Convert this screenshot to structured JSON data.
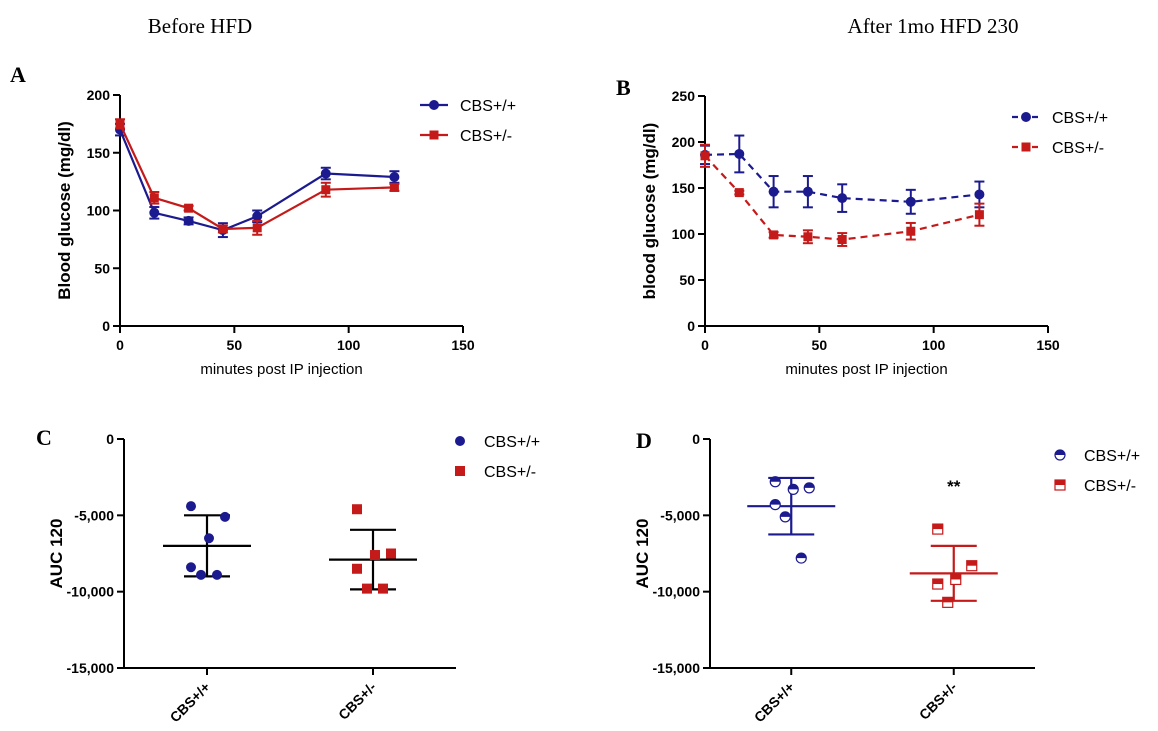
{
  "headings": {
    "left": "Before HFD",
    "right": "After 1mo HFD 230"
  },
  "colors": {
    "wt": "#1b1a8e",
    "het": "#c41a1a",
    "axis": "#000000"
  },
  "chart_data": [
    {
      "panel": "A",
      "type": "line",
      "xlabel": "minutes post IP injection",
      "ylabel": "Blood glucose (mg/dl)",
      "xlim": [
        0,
        150
      ],
      "ylim": [
        0,
        200
      ],
      "xticks": [
        "0",
        "50",
        "100",
        "150"
      ],
      "yticks": [
        "0",
        "50",
        "100",
        "150",
        "200"
      ],
      "legend_position": "top-right",
      "series": [
        {
          "name": "CBS+/+",
          "color": "#1b1a8e",
          "marker": "circle",
          "line": "solid",
          "x": [
            0,
            15,
            30,
            45,
            60,
            90,
            120
          ],
          "y": [
            170,
            98,
            91,
            83,
            95,
            132,
            129
          ],
          "err": [
            5,
            5,
            3,
            6,
            5,
            5,
            5
          ]
        },
        {
          "name": "CBS+/-",
          "color": "#c41a1a",
          "marker": "square",
          "line": "solid",
          "x": [
            0,
            15,
            30,
            45,
            60,
            90,
            120
          ],
          "y": [
            175,
            111,
            102,
            84,
            85,
            118,
            120
          ],
          "err": [
            4,
            5,
            2,
            3,
            6,
            6,
            3
          ]
        }
      ]
    },
    {
      "panel": "B",
      "type": "line",
      "xlabel": "minutes post IP injection",
      "ylabel": "blood glucose (mg/dl)",
      "xlim": [
        0,
        150
      ],
      "ylim": [
        0,
        250
      ],
      "xticks": [
        "0",
        "50",
        "100",
        "150"
      ],
      "yticks": [
        "0",
        "50",
        "100",
        "150",
        "200",
        "250"
      ],
      "legend_position": "top-right",
      "series": [
        {
          "name": "CBS+/+",
          "color": "#1b1a8e",
          "marker": "circle",
          "line": "dashed",
          "x": [
            0,
            15,
            30,
            45,
            60,
            90,
            120
          ],
          "y": [
            186,
            187,
            146,
            146,
            139,
            135,
            143
          ],
          "err": [
            10,
            20,
            17,
            17,
            15,
            13,
            14
          ]
        },
        {
          "name": "CBS+/-",
          "color": "#c41a1a",
          "marker": "square",
          "line": "dashed",
          "x": [
            0,
            15,
            30,
            45,
            60,
            90,
            120
          ],
          "y": [
            185,
            145,
            99,
            97,
            94,
            103,
            121
          ],
          "err": [
            12,
            2,
            3,
            7,
            7,
            9,
            12
          ]
        }
      ]
    },
    {
      "panel": "C",
      "type": "scatter",
      "ylabel": "AUC 120",
      "ylim": [
        -15000,
        0
      ],
      "yticks": [
        "0",
        "-5,000",
        "-10,000",
        "-15,000"
      ],
      "categories": [
        "CBS+/+",
        "CBS+/-"
      ],
      "legend_position": "top-right",
      "series": [
        {
          "name": "CBS+/+",
          "color": "#1b1a8e",
          "marker": "circle",
          "points": [
            -4400,
            -5100,
            -6500,
            -8400,
            -8900,
            -8900
          ],
          "mean": -7000,
          "sd": 2000
        },
        {
          "name": "CBS+/-",
          "color": "#c41a1a",
          "marker": "square",
          "points": [
            -4600,
            -7500,
            -7600,
            -8500,
            -9800,
            -9800
          ],
          "mean": -7900,
          "sd": 1950
        }
      ]
    },
    {
      "panel": "D",
      "type": "scatter",
      "ylabel": "AUC 120",
      "ylim": [
        -15000,
        0
      ],
      "yticks": [
        "0",
        "-5,000",
        "-10,000",
        "-15,000"
      ],
      "categories": [
        "CBS+/+",
        "CBS+/-"
      ],
      "legend_position": "top-right",
      "annotation": "**",
      "series": [
        {
          "name": "CBS+/+",
          "color": "#1b1a8e",
          "marker": "half-circle",
          "points": [
            -2800,
            -3200,
            -3300,
            -4300,
            -5100,
            -7800
          ],
          "mean": -4400,
          "sd": 1850
        },
        {
          "name": "CBS+/-",
          "color": "#c41a1a",
          "marker": "half-square",
          "points": [
            -5900,
            -8300,
            -9200,
            -9500,
            -10700
          ],
          "mean": -8800,
          "sd": 1800
        }
      ]
    }
  ]
}
